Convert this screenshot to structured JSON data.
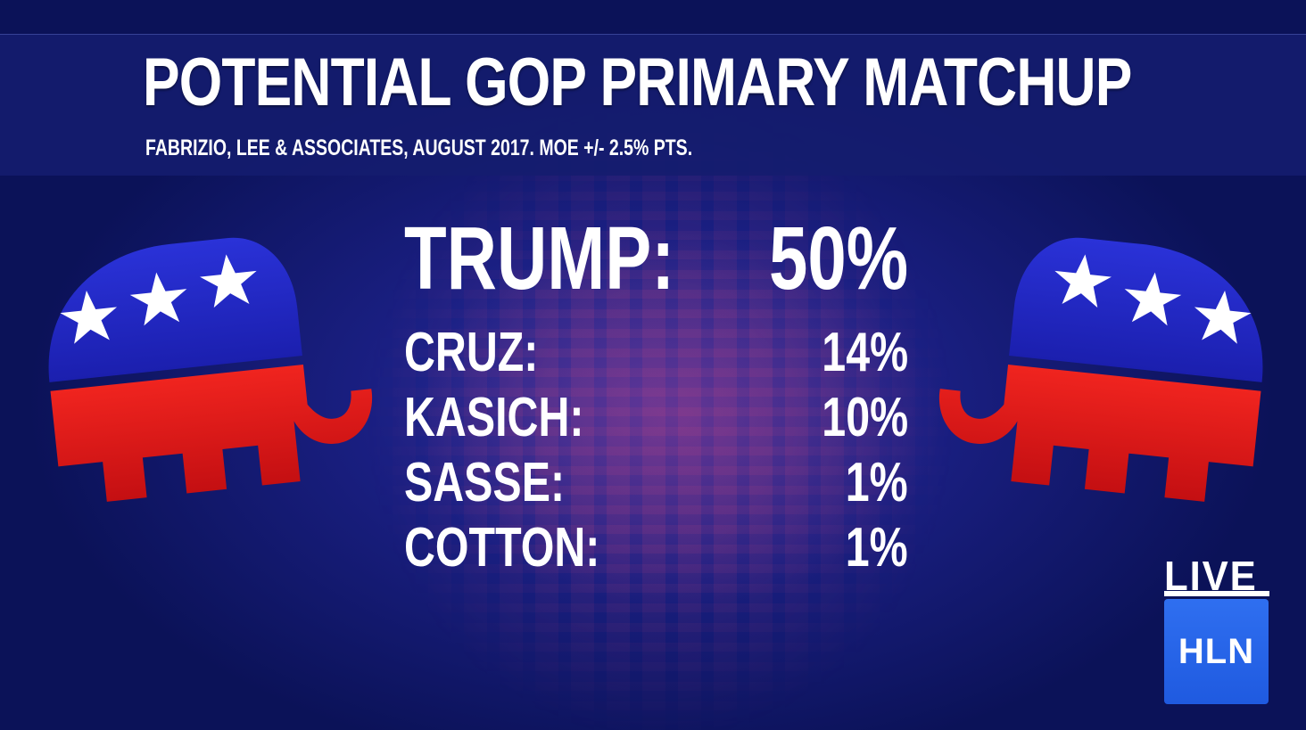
{
  "header": {
    "title": "POTENTIAL GOP PRIMARY MATCHUP",
    "subtitle": "FABRIZIO, LEE & ASSOCIATES, AUGUST 2017. MOE +/- 2.5% PTS."
  },
  "results": [
    {
      "candidate": "TRUMP:",
      "percent": "50%"
    },
    {
      "candidate": "CRUZ:",
      "percent": "14%"
    },
    {
      "candidate": "KASICH:",
      "percent": "10%"
    },
    {
      "candidate": "SASSE:",
      "percent": "1%"
    },
    {
      "candidate": "COTTON:",
      "percent": "1%"
    }
  ],
  "badge": {
    "live": "LIVE",
    "network": "HLN"
  },
  "icons": {
    "left": "gop-elephant-icon",
    "right": "gop-elephant-icon"
  },
  "colors": {
    "elephant_blue": "#2024c8",
    "elephant_red": "#e21a1a",
    "hln_blue": "#2f6ff0"
  }
}
